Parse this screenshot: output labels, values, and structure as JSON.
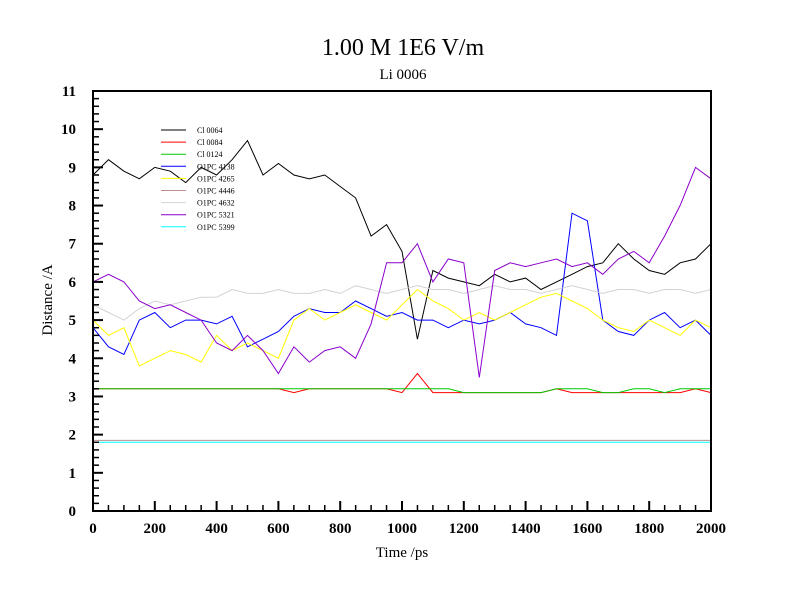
{
  "chart_data": {
    "type": "line",
    "title": "1.00 M 1E6 V/m",
    "subtitle": "Li 0006",
    "xlabel": "Time /ps",
    "ylabel": "Distance /A",
    "xlim": [
      0,
      2000
    ],
    "ylim": [
      0,
      11
    ],
    "xticks": [
      0,
      200,
      400,
      600,
      800,
      1000,
      1200,
      1400,
      1600,
      1800,
      2000
    ],
    "yticks": [
      0,
      1,
      2,
      3,
      4,
      5,
      6,
      7,
      8,
      9,
      10,
      11
    ],
    "grid": false,
    "legend_position": "top-left",
    "x": [
      0,
      50,
      100,
      150,
      200,
      250,
      300,
      350,
      400,
      450,
      500,
      550,
      600,
      650,
      700,
      750,
      800,
      850,
      900,
      950,
      1000,
      1050,
      1100,
      1150,
      1200,
      1250,
      1300,
      1350,
      1400,
      1450,
      1500,
      1550,
      1600,
      1650,
      1700,
      1750,
      1800,
      1850,
      1900,
      1950,
      2000
    ],
    "series": [
      {
        "name": "Cl 0064",
        "color": "#000000",
        "values": [
          8.8,
          9.2,
          8.9,
          8.7,
          9.0,
          8.9,
          8.6,
          9.0,
          8.8,
          9.2,
          9.7,
          8.8,
          9.1,
          8.8,
          8.7,
          8.8,
          8.5,
          8.2,
          7.2,
          7.5,
          6.8,
          4.5,
          6.3,
          6.1,
          6.0,
          5.9,
          6.2,
          6.0,
          6.1,
          5.8,
          6.0,
          6.2,
          6.4,
          6.5,
          7.0,
          6.6,
          6.3,
          6.2,
          6.5,
          6.6,
          7.0
        ]
      },
      {
        "name": "Cl 0084",
        "color": "#ff0000",
        "values": [
          3.2,
          3.2,
          3.2,
          3.2,
          3.2,
          3.2,
          3.2,
          3.2,
          3.2,
          3.2,
          3.2,
          3.2,
          3.2,
          3.1,
          3.2,
          3.2,
          3.2,
          3.2,
          3.2,
          3.2,
          3.1,
          3.6,
          3.1,
          3.1,
          3.1,
          3.1,
          3.1,
          3.1,
          3.1,
          3.1,
          3.2,
          3.1,
          3.1,
          3.1,
          3.1,
          3.1,
          3.1,
          3.1,
          3.1,
          3.2,
          3.1
        ]
      },
      {
        "name": "Cl 0124",
        "color": "#00cc00",
        "values": [
          3.2,
          3.2,
          3.2,
          3.2,
          3.2,
          3.2,
          3.2,
          3.2,
          3.2,
          3.2,
          3.2,
          3.2,
          3.2,
          3.2,
          3.2,
          3.2,
          3.2,
          3.2,
          3.2,
          3.2,
          3.2,
          3.2,
          3.2,
          3.2,
          3.1,
          3.1,
          3.1,
          3.1,
          3.1,
          3.1,
          3.2,
          3.2,
          3.2,
          3.1,
          3.1,
          3.2,
          3.2,
          3.1,
          3.2,
          3.2,
          3.2
        ]
      },
      {
        "name": "O1PC 4138",
        "color": "#0000ff",
        "values": [
          4.8,
          4.3,
          4.1,
          5.0,
          5.2,
          4.8,
          5.0,
          5.0,
          4.9,
          5.1,
          4.3,
          4.5,
          4.7,
          5.1,
          5.3,
          5.2,
          5.2,
          5.5,
          5.3,
          5.1,
          5.2,
          5.0,
          5.0,
          4.8,
          5.0,
          4.9,
          5.0,
          5.2,
          4.9,
          4.8,
          4.6,
          7.8,
          7.6,
          5.0,
          4.7,
          4.6,
          5.0,
          5.2,
          4.8,
          5.0,
          4.6
        ]
      },
      {
        "name": "O1PC 4265",
        "color": "#ffff00",
        "values": [
          5.0,
          4.6,
          4.8,
          3.8,
          4.0,
          4.2,
          4.1,
          3.9,
          4.6,
          4.2,
          4.4,
          4.2,
          4.0,
          5.0,
          5.3,
          5.0,
          5.2,
          5.4,
          5.2,
          5.0,
          5.4,
          5.8,
          5.5,
          5.3,
          5.0,
          5.2,
          5.0,
          5.2,
          5.4,
          5.6,
          5.7,
          5.5,
          5.3,
          5.0,
          4.8,
          4.7,
          5.0,
          4.8,
          4.6,
          5.0,
          4.8
        ]
      },
      {
        "name": "O1PC 4446",
        "color": "#bc8f8f",
        "values": [
          1.85,
          1.85,
          1.85,
          1.85,
          1.85,
          1.85,
          1.85,
          1.85,
          1.85,
          1.85,
          1.85,
          1.85,
          1.85,
          1.85,
          1.85,
          1.85,
          1.85,
          1.85,
          1.85,
          1.85,
          1.85,
          1.85,
          1.85,
          1.85,
          1.85,
          1.85,
          1.85,
          1.85,
          1.85,
          1.85,
          1.85,
          1.85,
          1.85,
          1.85,
          1.85,
          1.85,
          1.85,
          1.85,
          1.85,
          1.85,
          1.85
        ]
      },
      {
        "name": "O1PC 4632",
        "color": "#d3d3d3",
        "values": [
          5.4,
          5.2,
          5.0,
          5.3,
          5.5,
          5.4,
          5.5,
          5.6,
          5.6,
          5.8,
          5.7,
          5.7,
          5.8,
          5.7,
          5.7,
          5.8,
          5.7,
          5.9,
          5.8,
          5.7,
          5.8,
          5.9,
          5.8,
          5.8,
          5.7,
          5.8,
          5.9,
          5.8,
          5.8,
          5.7,
          5.8,
          5.9,
          5.8,
          5.7,
          5.8,
          5.8,
          5.7,
          5.8,
          5.8,
          5.7,
          5.8
        ]
      },
      {
        "name": "O1PC 5321",
        "color": "#8b00cc",
        "values": [
          6.0,
          6.2,
          6.0,
          5.5,
          5.3,
          5.4,
          5.2,
          5.0,
          4.4,
          4.2,
          4.6,
          4.2,
          3.6,
          4.3,
          3.9,
          4.2,
          4.3,
          4.0,
          4.9,
          6.5,
          6.5,
          7.0,
          6.0,
          6.6,
          6.5,
          3.5,
          6.3,
          6.5,
          6.4,
          6.5,
          6.6,
          6.4,
          6.5,
          6.2,
          6.6,
          6.8,
          6.5,
          7.2,
          8.0,
          9.0,
          8.7
        ]
      },
      {
        "name": "O1PC 5399",
        "color": "#00ffff",
        "values": [
          1.8,
          1.8,
          1.8,
          1.8,
          1.8,
          1.8,
          1.8,
          1.8,
          1.8,
          1.8,
          1.8,
          1.8,
          1.8,
          1.8,
          1.8,
          1.8,
          1.8,
          1.8,
          1.8,
          1.8,
          1.8,
          1.8,
          1.8,
          1.8,
          1.8,
          1.8,
          1.8,
          1.8,
          1.8,
          1.8,
          1.8,
          1.8,
          1.8,
          1.8,
          1.8,
          1.8,
          1.8,
          1.8,
          1.8,
          1.8,
          1.8
        ]
      }
    ]
  }
}
